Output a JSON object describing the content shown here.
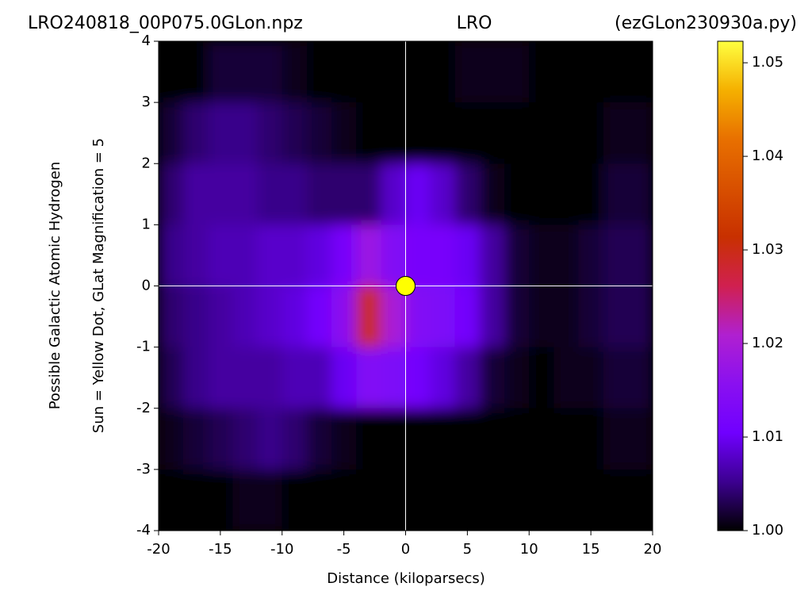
{
  "chart_data": {
    "type": "heatmap",
    "title_left": "LRO240818_00P075.0GLon.npz",
    "title_center": "LRO",
    "title_right": "(ezGLon230930a.py)",
    "xlabel": "Distance (kiloparsecs)",
    "ylabel": [
      "Possible Galactic Atomic Hydrogen",
      "Sun = Yellow Dot, GLat Magnification = 5"
    ],
    "xlim": [
      -20,
      20
    ],
    "ylim": [
      -4,
      4
    ],
    "xticks": [
      -20,
      -15,
      -10,
      -5,
      0,
      5,
      10,
      15,
      20
    ],
    "yticks": [
      -4,
      -3,
      -2,
      -1,
      0,
      1,
      2,
      3,
      4
    ],
    "x": [
      -19,
      -17,
      -15,
      -13,
      -11,
      -9,
      -7,
      -5,
      -3,
      -1,
      1,
      3,
      5,
      7,
      9,
      11,
      13,
      15,
      17,
      19
    ],
    "y": [
      3.5,
      2.5,
      1.5,
      0.5,
      -0.5,
      -1.5,
      -2.5,
      -3.5
    ],
    "z": [
      [
        1.0,
        1.0,
        1.002,
        1.002,
        1.002,
        1.001,
        1.0,
        1.0,
        1.0,
        1.0,
        1.0,
        1.0,
        1.001,
        1.001,
        1.001,
        1.0,
        1.0,
        1.0,
        1.0,
        1.0
      ],
      [
        1.002,
        1.004,
        1.005,
        1.005,
        1.004,
        1.003,
        1.002,
        1.001,
        1.0,
        1.0,
        1.0,
        1.0,
        1.0,
        1.0,
        1.0,
        1.0,
        1.0,
        1.0,
        1.001,
        1.001
      ],
      [
        1.004,
        1.006,
        1.006,
        1.006,
        1.005,
        1.005,
        1.004,
        1.004,
        1.004,
        1.008,
        1.01,
        1.008,
        1.004,
        1.001,
        1.0,
        1.0,
        1.0,
        1.0,
        1.002,
        1.002
      ],
      [
        1.005,
        1.006,
        1.007,
        1.007,
        1.008,
        1.008,
        1.009,
        1.012,
        1.018,
        1.014,
        1.012,
        1.012,
        1.01,
        1.006,
        1.002,
        1.001,
        1.001,
        1.002,
        1.003,
        1.003
      ],
      [
        1.004,
        1.005,
        1.006,
        1.007,
        1.008,
        1.009,
        1.011,
        1.016,
        1.03,
        1.02,
        1.014,
        1.013,
        1.011,
        1.006,
        1.002,
        1.001,
        1.001,
        1.002,
        1.003,
        1.003
      ],
      [
        1.003,
        1.005,
        1.006,
        1.006,
        1.006,
        1.007,
        1.007,
        1.01,
        1.014,
        1.013,
        1.011,
        1.009,
        1.006,
        1.002,
        1.001,
        1.0,
        1.001,
        1.001,
        1.002,
        1.002
      ],
      [
        1.001,
        1.002,
        1.003,
        1.004,
        1.005,
        1.004,
        1.002,
        1.001,
        1.0,
        1.0,
        1.0,
        1.0,
        1.0,
        1.0,
        1.0,
        1.0,
        1.0,
        1.0,
        1.001,
        1.001
      ],
      [
        1.0,
        1.0,
        1.0,
        1.001,
        1.001,
        1.0,
        1.0,
        1.0,
        1.0,
        1.0,
        1.0,
        1.0,
        1.0,
        1.0,
        1.0,
        1.0,
        1.0,
        1.0,
        1.0,
        1.0
      ]
    ],
    "clim": [
      1.0,
      1.0523
    ],
    "cticks": [
      {
        "value": 1,
        "label": "1.00"
      },
      1.01,
      1.02,
      1.03,
      1.04,
      1.05
    ],
    "colormap": [
      "#000000",
      "#3c0090",
      "#7000ff",
      "#8a10f0",
      "#b020d0",
      "#d02050",
      "#c83000",
      "#d85000",
      "#e87000",
      "#f5b000",
      "#ffff40"
    ],
    "sun": {
      "x": 0,
      "y": 0,
      "color": "#ffff00"
    },
    "crosshair_color": "#ffffff"
  }
}
